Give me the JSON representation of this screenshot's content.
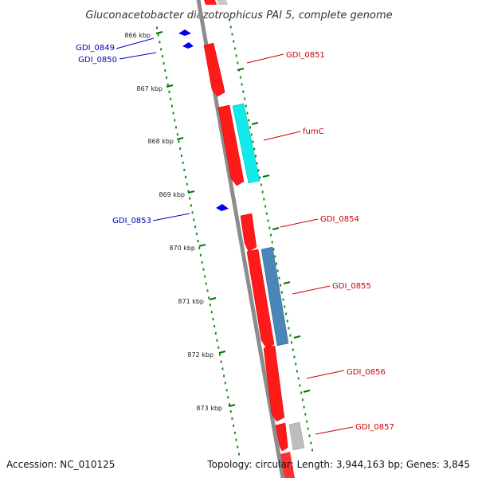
{
  "title": "Gluconacetobacter diazotrophicus PAI 5, complete genome",
  "footer": {
    "accession": "Accession: NC_010125",
    "topology": "Topology: circular; Length: 3,944,163 bp; Genes: 3,845"
  },
  "ticks": [
    {
      "label": "866 kbp",
      "kbp": 866
    },
    {
      "label": "867 kbp",
      "kbp": 867
    },
    {
      "label": "868 kbp",
      "kbp": 868
    },
    {
      "label": "869 kbp",
      "kbp": 869
    },
    {
      "label": "870 kbp",
      "kbp": 870
    },
    {
      "label": "871 kbp",
      "kbp": 871
    },
    {
      "label": "872 kbp",
      "kbp": 872
    },
    {
      "label": "873 kbp",
      "kbp": 873
    }
  ],
  "colors": {
    "backbone": "#888888",
    "forward_gene": "#ff0000",
    "reverse_gene": "#0000ff",
    "label_forward": "#cc0000",
    "label_reverse": "#0000aa",
    "tick": "#006600",
    "fumC_feature": "#00e5e5",
    "gdi0855_feature": "#4682b4",
    "other_feature": "#b0b0b0"
  },
  "genes_reverse": [
    {
      "name": "GDI_0849"
    },
    {
      "name": "GDI_0850"
    },
    {
      "name": "GDI_0853"
    }
  ],
  "genes_forward": [
    {
      "name": "GDI_0851"
    },
    {
      "name": "fumC"
    },
    {
      "name": "GDI_0854"
    },
    {
      "name": "GDI_0855"
    },
    {
      "name": "GDI_0856"
    },
    {
      "name": "GDI_0857"
    }
  ]
}
